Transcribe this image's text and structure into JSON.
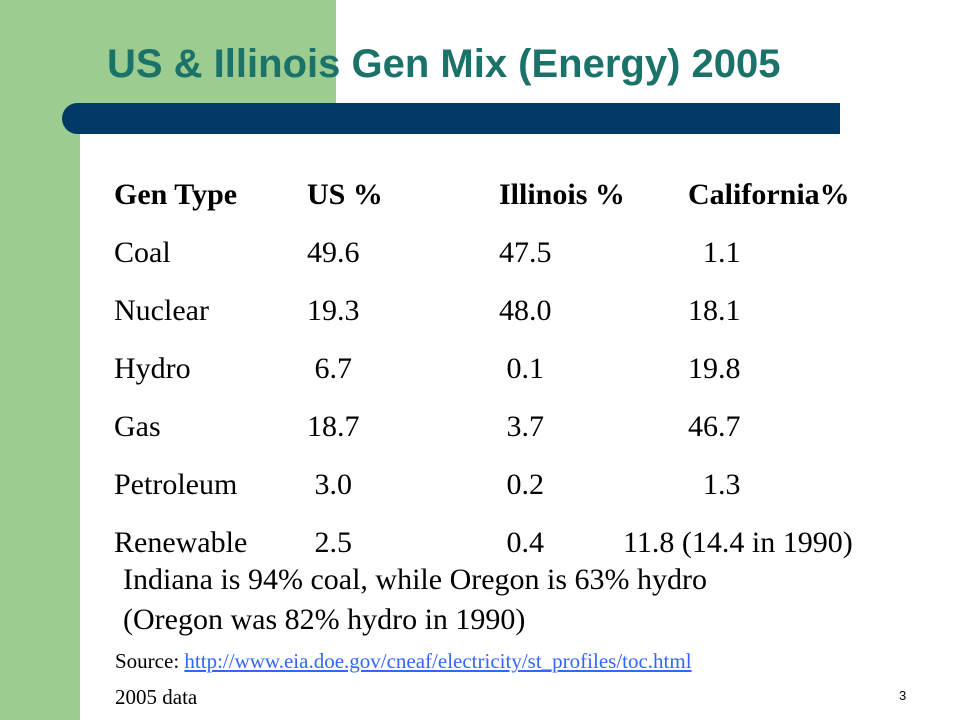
{
  "slide": {
    "title": "US & Illinois Gen Mix (Energy) 2005",
    "number": "3",
    "colors": {
      "title": "#1b7268",
      "rule": "#023a66",
      "accent_green": "#9ccc8f",
      "link": "#3366ff"
    }
  },
  "table": {
    "headers": [
      "Gen Type",
      "US %",
      "Illinois %",
      "California%"
    ],
    "rows": [
      [
        "Coal",
        "49.6",
        "47.5",
        "  1.1"
      ],
      [
        "Nuclear",
        "19.3",
        "48.0",
        "18.1"
      ],
      [
        "Hydro",
        " 6.7",
        " 0.1",
        "19.8"
      ],
      [
        "Gas",
        "18.7",
        " 3.7",
        "46.7"
      ],
      [
        "Petroleum",
        " 3.0",
        " 0.2",
        "  1.3"
      ],
      [
        "Renewable",
        " 2.5",
        " 0.4",
        "11.8 (14.4 in 1990)"
      ]
    ]
  },
  "notes": [
    "Indiana is 94% coal, while Oregon is 63% hydro",
    "(Oregon was 82% hydro in 1990)"
  ],
  "source": {
    "label": "Source: ",
    "link_text": "http://www.eia.doe.gov/cneaf/electricity/st_profiles/toc.html",
    "year_note": "2005 data"
  }
}
